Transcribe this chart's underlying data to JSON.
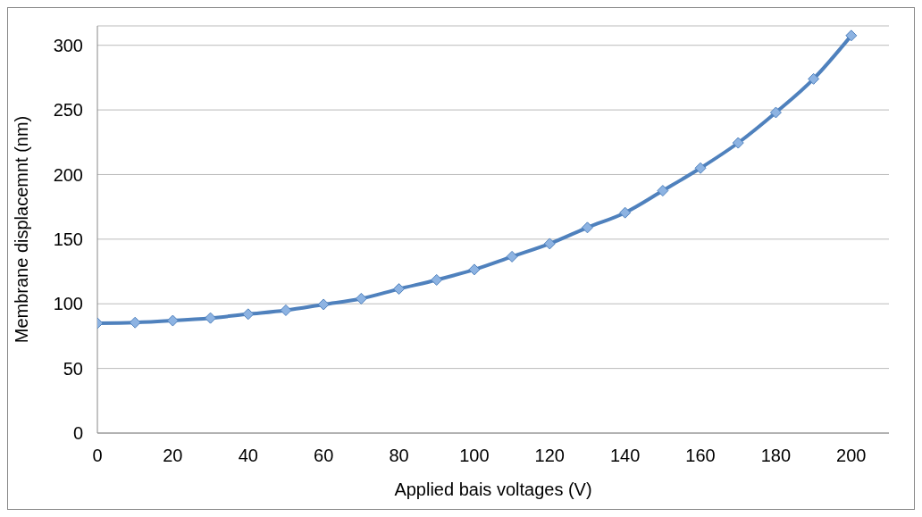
{
  "chart_data": {
    "type": "line",
    "xlabel": "Applied bais voltages (V)",
    "ylabel": "Membrane displacemnt (nm)",
    "x": [
      0,
      10,
      20,
      30,
      40,
      50,
      60,
      70,
      80,
      90,
      100,
      110,
      120,
      130,
      140,
      150,
      160,
      170,
      180,
      190,
      200
    ],
    "series": [
      {
        "color": "#4f81bd",
        "values": [
          85,
          85.5,
          87,
          89,
          92,
          95,
          99.5,
          104,
          111.5,
          118.5,
          126.5,
          136.5,
          146.5,
          159,
          170.5,
          187.5,
          205,
          224.5,
          248,
          274,
          307.5
        ]
      }
    ],
    "xlim": [
      0,
      210
    ],
    "xticks": [
      0,
      20,
      40,
      60,
      80,
      100,
      120,
      140,
      160,
      180,
      200
    ],
    "ylim": [
      0,
      315
    ],
    "yticks": [
      0,
      50,
      100,
      150,
      200,
      250,
      300
    ],
    "grid": "y",
    "legend": false,
    "marker": "diamond",
    "line_style": "solid"
  }
}
